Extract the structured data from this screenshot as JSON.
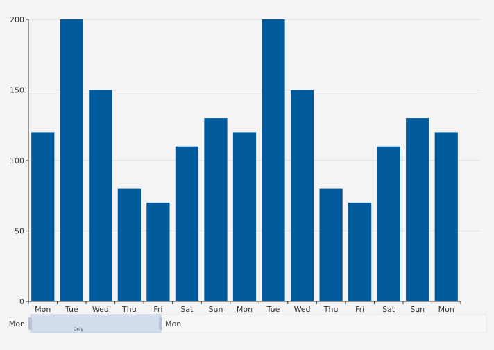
{
  "chart_data": {
    "type": "bar",
    "categories": [
      "Mon",
      "Tue",
      "Wed",
      "Thu",
      "Fri",
      "Sat",
      "Sun",
      "Mon",
      "Tue",
      "Wed",
      "Thu",
      "Fri",
      "Sat",
      "Sun",
      "Mon"
    ],
    "values": [
      120,
      200,
      150,
      80,
      70,
      110,
      130,
      120,
      200,
      150,
      80,
      70,
      110,
      130,
      120
    ],
    "title": "",
    "xlabel": "",
    "ylabel": "",
    "ylim": [
      0,
      200
    ],
    "yticks": [
      0,
      50,
      100,
      150,
      200
    ],
    "grid": true,
    "bar_color": "#005a9c"
  },
  "data_zoom": {
    "start_label": "Mon",
    "end_label": "Mon",
    "handle_text": "Only"
  },
  "colors": {
    "background": "#f4f4f4",
    "axis": "#333333",
    "grid": "#dddddd",
    "zoom_fill": "#d2deec",
    "zoom_handle": "#b5c2d2"
  }
}
